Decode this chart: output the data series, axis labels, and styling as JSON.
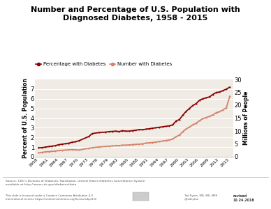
{
  "title": "Number and Percentage of U.S. Population with\nDiagnosed Diabetes, 1958 - 2015",
  "ylabel_left": "Percent of U.S. Population",
  "ylabel_right": "Millions of People",
  "background_color": "#ffffff",
  "chart_bg_color": "#f0ebe4",
  "years_pct": [
    1958,
    1959,
    1960,
    1961,
    1962,
    1963,
    1964,
    1965,
    1966,
    1967,
    1968,
    1969,
    1970,
    1973,
    1974,
    1976,
    1978,
    1979,
    1980,
    1981,
    1982,
    1983,
    1984,
    1985,
    1986,
    1987,
    1988,
    1989,
    1990,
    1991,
    1992,
    1993,
    1994,
    1995,
    1996,
    1997,
    1998,
    1999,
    2000,
    2001,
    2002,
    2003,
    2004,
    2005,
    2006,
    2007,
    2008,
    2009,
    2010,
    2011,
    2012,
    2013,
    2014,
    2015
  ],
  "pct_values": [
    0.93,
    0.94,
    1.0,
    1.05,
    1.1,
    1.15,
    1.25,
    1.3,
    1.35,
    1.4,
    1.5,
    1.55,
    1.65,
    2.1,
    2.4,
    2.5,
    2.55,
    2.6,
    2.62,
    2.65,
    2.6,
    2.7,
    2.65,
    2.65,
    2.7,
    2.75,
    2.8,
    2.8,
    2.85,
    2.9,
    2.95,
    3.0,
    3.05,
    3.1,
    3.15,
    3.2,
    3.3,
    3.7,
    3.85,
    4.3,
    4.7,
    5.0,
    5.3,
    5.5,
    5.85,
    6.0,
    6.1,
    6.2,
    6.45,
    6.65,
    6.7,
    6.85,
    7.0,
    7.2
  ],
  "years_num": [
    1958,
    1959,
    1960,
    1961,
    1962,
    1963,
    1964,
    1965,
    1966,
    1967,
    1968,
    1969,
    1970,
    1973,
    1974,
    1976,
    1978,
    1979,
    1980,
    1981,
    1982,
    1983,
    1984,
    1985,
    1986,
    1987,
    1988,
    1989,
    1990,
    1991,
    1992,
    1993,
    1994,
    1995,
    1996,
    1997,
    1998,
    1999,
    2000,
    2001,
    2002,
    2003,
    2004,
    2005,
    2006,
    2007,
    2008,
    2009,
    2010,
    2011,
    2012,
    2013,
    2014,
    2015
  ],
  "num_values": [
    1.5,
    1.7,
    1.9,
    2.0,
    2.1,
    2.2,
    2.4,
    2.5,
    2.6,
    2.7,
    2.8,
    2.7,
    2.6,
    3.3,
    3.5,
    3.8,
    4.0,
    4.1,
    4.2,
    4.3,
    4.3,
    4.5,
    4.5,
    4.6,
    4.7,
    4.8,
    4.9,
    5.0,
    5.3,
    5.4,
    5.5,
    5.7,
    5.9,
    6.1,
    6.3,
    6.5,
    6.9,
    7.8,
    8.4,
    9.7,
    10.8,
    11.5,
    12.4,
    13.0,
    14.0,
    14.8,
    15.2,
    15.7,
    16.3,
    17.1,
    17.5,
    18.2,
    19.0,
    23.4
  ],
  "pct_color": "#8b0000",
  "num_color": "#d4826a",
  "ylim_left": [
    0.0,
    8.0
  ],
  "ylim_right": [
    0,
    30
  ],
  "yticks_left": [
    0.0,
    1.0,
    2.0,
    3.0,
    4.0,
    5.0,
    6.0,
    7.0
  ],
  "yticks_right": [
    0,
    5,
    10,
    15,
    20,
    25,
    30
  ],
  "xticks": [
    1958,
    1961,
    1964,
    1967,
    1970,
    1973,
    1976,
    1979,
    1982,
    1985,
    1988,
    1991,
    1994,
    1997,
    2000,
    2003,
    2006,
    2009,
    2012,
    2015
  ],
  "source_text": "Source: CDC's Division of Diabetes Translation. United States Diabetes Surveillance System\navailable at http://www.cdc.gov/diabetes/data",
  "license_text": "This slide is licensed under a Creative Commons Attribution 4.0\nInternational License https://creativecommons.org/licenses/by/4.0/",
  "author_text": "Ted Eytan, MD, MS, MPH\n@tedeytan",
  "revised_text": "revised\n10.24.2018",
  "legend_pct": "Percentage with Diabetes",
  "legend_num": "Number with Diabetes"
}
